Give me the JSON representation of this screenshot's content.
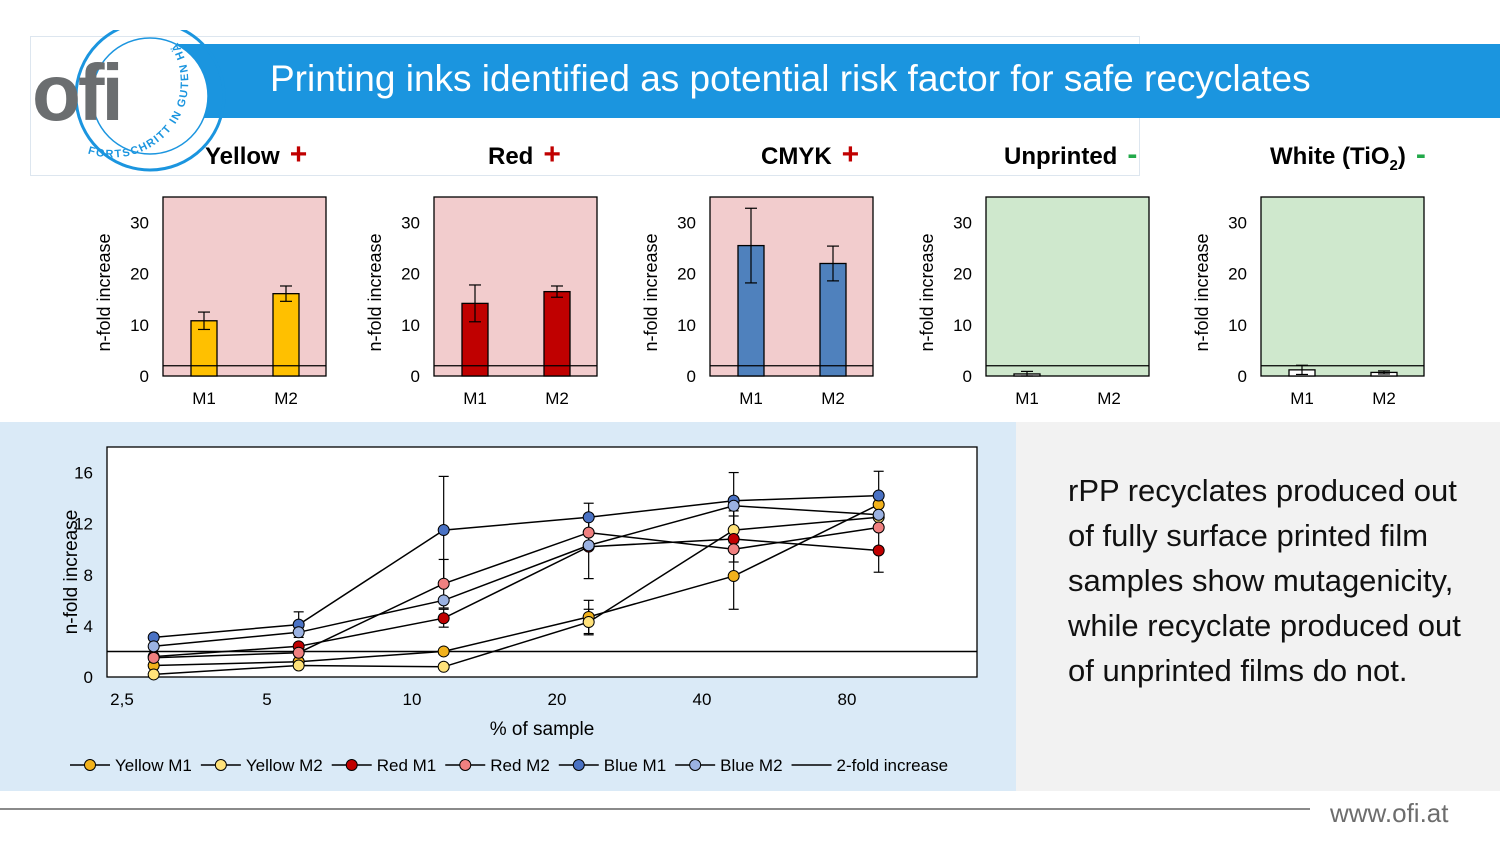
{
  "header": {
    "title": "Printing inks identified as potential risk factor for safe recyclates",
    "logo_text": "ofi",
    "logo_ring_text": "FORTSCHRITT IN GUTEN HÄNDEN"
  },
  "colors": {
    "accent": "#1b95df",
    "positive_bg": "#f2cccd",
    "negative_bg": "#cfe8cd"
  },
  "summary_text": "rPP recyclates produced out of fully surface printed film samples show mutagenicity, while recyclate produced out of unprinted films do not.",
  "footer": {
    "url": "www.ofi.at"
  },
  "chart_data": [
    {
      "type": "bar",
      "label": "Yellow",
      "result": "+",
      "categories": [
        "M1",
        "M2"
      ],
      "values": [
        10.8,
        16.1
      ],
      "errors": [
        1.7,
        1.5
      ],
      "ylabel": "n-fold increase",
      "ylim": [
        0,
        35
      ],
      "yticks": [
        0,
        10,
        20,
        30
      ],
      "threshold": 2,
      "bar_color": "#ffc000",
      "background": "#f2cccd"
    },
    {
      "type": "bar",
      "label": "Red",
      "result": "+",
      "categories": [
        "M1",
        "M2"
      ],
      "values": [
        14.2,
        16.5
      ],
      "errors": [
        3.6,
        1.1
      ],
      "ylabel": "n-fold increase",
      "ylim": [
        0,
        35
      ],
      "yticks": [
        0,
        10,
        20,
        30
      ],
      "threshold": 2,
      "bar_color": "#c00000",
      "background": "#f2cccd"
    },
    {
      "type": "bar",
      "label": "CMYK",
      "result": "+",
      "categories": [
        "M1",
        "M2"
      ],
      "values": [
        25.5,
        22.0
      ],
      "errors": [
        7.3,
        3.4
      ],
      "ylabel": "n-fold increase",
      "ylim": [
        0,
        35
      ],
      "yticks": [
        0,
        10,
        20,
        30
      ],
      "threshold": 2,
      "bar_color": "#4f81bd",
      "background": "#f2cccd"
    },
    {
      "type": "bar",
      "label": "Unprinted",
      "result": "-",
      "categories": [
        "M1",
        "M2"
      ],
      "values": [
        0.4,
        0.0
      ],
      "errors": [
        0.5,
        0.0
      ],
      "ylabel": "n-fold increase",
      "ylim": [
        0,
        35
      ],
      "yticks": [
        0,
        10,
        20,
        30
      ],
      "threshold": 2,
      "bar_color": "#ffffff",
      "background": "#cfe8cd"
    },
    {
      "type": "bar",
      "label": "White (TiO",
      "label_sub": "2",
      "label_end": ")",
      "result": "-",
      "categories": [
        "M1",
        "M2"
      ],
      "values": [
        1.2,
        0.7
      ],
      "errors": [
        0.9,
        0.3
      ],
      "ylabel": "n-fold increase",
      "ylim": [
        0,
        35
      ],
      "yticks": [
        0,
        10,
        20,
        30
      ],
      "threshold": 2,
      "bar_color": "#ffffff",
      "background": "#cfe8cd"
    },
    {
      "type": "line",
      "xlabel": "% of sample",
      "ylabel": "n-fold increase",
      "x_scale": "log2",
      "x_ticks": [
        2.5,
        5,
        10,
        20,
        40,
        80
      ],
      "x_tick_labels": [
        "2,5",
        "5",
        "10",
        "20",
        "40",
        "80"
      ],
      "xlim": [
        2.5,
        160
      ],
      "ylim": [
        0,
        17
      ],
      "y_ticks": [
        0,
        4,
        8,
        12,
        16
      ],
      "x": [
        3.125,
        6.25,
        12.5,
        25,
        50,
        100
      ],
      "series": [
        {
          "name": "Yellow M1",
          "color": "#f2b21c",
          "values": [
            0.9,
            1.2,
            2.0,
            4.7,
            7.9,
            13.5
          ],
          "errors": [
            0,
            0,
            0,
            1.3,
            2.6,
            0
          ]
        },
        {
          "name": "Yellow M2",
          "color": "#ffe27a",
          "values": [
            0.2,
            0.9,
            0.8,
            4.3,
            11.5,
            12.5
          ],
          "errors": [
            0,
            0,
            0,
            1.0,
            1.5,
            0
          ]
        },
        {
          "name": "Red M1",
          "color": "#c00000",
          "values": [
            1.6,
            2.4,
            4.6,
            10.2,
            10.8,
            9.9
          ],
          "errors": [
            0,
            0,
            0.7,
            2.5,
            1.8,
            1.7
          ]
        },
        {
          "name": "Red M2",
          "color": "#f08080",
          "values": [
            1.5,
            1.9,
            7.3,
            11.3,
            10.0,
            11.7
          ],
          "errors": [
            0,
            0,
            1.9,
            0,
            0,
            0
          ]
        },
        {
          "name": "Blue M1",
          "color": "#4a72c4",
          "values": [
            3.1,
            4.1,
            11.5,
            12.5,
            13.8,
            14.2
          ],
          "errors": [
            0,
            1.0,
            4.2,
            1.1,
            2.2,
            1.9
          ]
        },
        {
          "name": "Blue M2",
          "color": "#9bb2e2",
          "values": [
            2.4,
            3.5,
            6.0,
            10.3,
            13.4,
            12.7
          ],
          "errors": [
            0,
            0,
            0,
            0,
            0,
            0
          ]
        }
      ],
      "threshold": {
        "name": "2-fold increase",
        "value": 2
      }
    }
  ]
}
